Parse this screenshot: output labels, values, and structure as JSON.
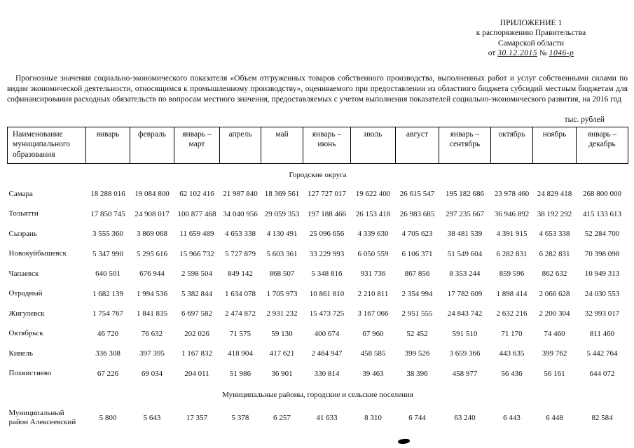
{
  "header": {
    "appendix": "ПРИЛОЖЕНИЕ 1",
    "line1": "к распоряжению Правительства",
    "line2": "Самарской области",
    "date_prefix": "от",
    "date": "30.12.2015",
    "num_prefix": "№",
    "number": "1046-р"
  },
  "title": "Прогнозные значения социально-экономического показателя «Объем отгруженных товаров собственного производства, выполненных работ и услуг собственными силами по видам экономической деятельности, относящимся к промышленному производству», оцениваемого при предоставлении из областного бюджета субсидий местным бюджетам для софинансирования расходных обязательств по вопросам местного значения, предоставляемых с учетом выполнения показателей социально-экономического развития, на 2016 год",
  "units": "тыс. рублей",
  "table": {
    "name_header": "Наименование муниципального образования",
    "columns": [
      "январь",
      "февраль",
      "январь – март",
      "апрель",
      "май",
      "январь – июнь",
      "июль",
      "август",
      "январь – сентябрь",
      "октябрь",
      "ноябрь",
      "январь – декабрь"
    ],
    "sections": [
      {
        "title": "Городские округа",
        "rows": [
          {
            "name": "Самара",
            "values": [
              "18 288 016",
              "19 084 800",
              "62 102 416",
              "21 987 840",
              "18 369 561",
              "127 727 017",
              "19 622 400",
              "26 615 547",
              "195 182 686",
              "23 978 460",
              "24 829 418",
              "268 800 000"
            ]
          },
          {
            "name": "Тольятти",
            "values": [
              "17 850 745",
              "24 908 017",
              "100 877 468",
              "34 040 956",
              "29 059 353",
              "197 188 466",
              "26 153 418",
              "26 983 685",
              "297 235 667",
              "36 946 892",
              "38 192 292",
              "415 133 613"
            ]
          },
          {
            "name": "Сызрань",
            "values": [
              "3 555 360",
              "3 869 068",
              "11 659 489",
              "4 653 338",
              "4 130 491",
              "25 096 656",
              "4 339 630",
              "4 705 623",
              "38 481 539",
              "4 391 915",
              "4 653 338",
              "52 284 700"
            ]
          },
          {
            "name": "Новокуйбышевск",
            "values": [
              "5 347 990",
              "5 295 616",
              "15 966 732",
              "5 727 879",
              "5 603 361",
              "33 229 993",
              "6 050 559",
              "6 106 371",
              "51 549 604",
              "6 282 831",
              "6 282 831",
              "70 398 098"
            ]
          },
          {
            "name": "Чапаевск",
            "values": [
              "640 501",
              "676 944",
              "2 598 504",
              "849 142",
              "868 507",
              "5 348 816",
              "931 736",
              "867 856",
              "8 353 244",
              "859 596",
              "862 632",
              "10 949 313"
            ]
          },
          {
            "name": "Отрадный",
            "values": [
              "1 682 139",
              "1 994 536",
              "5 382 844",
              "1 634 078",
              "1 705 973",
              "10 861 810",
              "2 210 811",
              "2 354 994",
              "17 782 609",
              "1 898 414",
              "2 066 628",
              "24 030 553"
            ]
          },
          {
            "name": "Жигулевск",
            "values": [
              "1 754 767",
              "1 841 835",
              "6 697 582",
              "2 474 872",
              "2 931 232",
              "15 473 725",
              "3 167 066",
              "2 951 555",
              "24 843 742",
              "2 632 216",
              "2 200 304",
              "32 993 017"
            ]
          },
          {
            "name": "Октябрьск",
            "values": [
              "46 720",
              "76 632",
              "202 026",
              "71 575",
              "59 130",
              "400 674",
              "67 960",
              "52 452",
              "591 510",
              "71 170",
              "74 460",
              "811 460"
            ]
          },
          {
            "name": "Кинель",
            "values": [
              "336 308",
              "397 395",
              "1 167 832",
              "418 904",
              "417 621",
              "2 464 947",
              "458 585",
              "399 526",
              "3 659 366",
              "443 635",
              "399 762",
              "5 442 764"
            ]
          },
          {
            "name": "Похвистнево",
            "values": [
              "67 226",
              "69 034",
              "204 011",
              "51 986",
              "36 901",
              "330 814",
              "39 463",
              "38 396",
              "458 977",
              "56 436",
              "56 161",
              "644 072"
            ]
          }
        ]
      },
      {
        "title": "Муниципальные районы, городские и сельские поселения",
        "rows": [
          {
            "name": "Муниципальный район Алексеевский",
            "values": [
              "5 800",
              "5 643",
              "17 357",
              "5 378",
              "6 257",
              "41 633",
              "8 310",
              "6 744",
              "63 240",
              "6 443",
              "6 448",
              "82 584"
            ]
          }
        ]
      }
    ]
  }
}
